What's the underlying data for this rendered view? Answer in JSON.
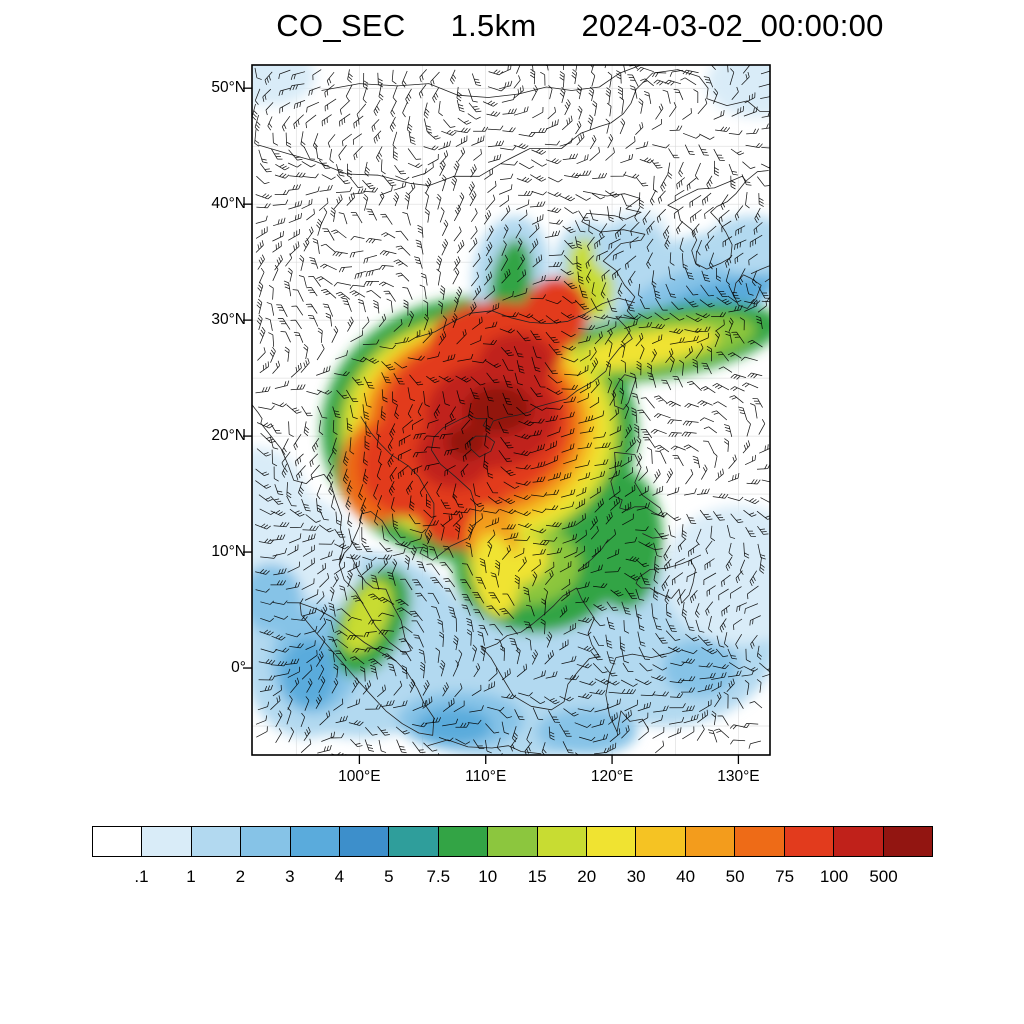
{
  "title": {
    "variable": "CO_SEC",
    "level": "1.5km",
    "datetime": "2024-03-02_00:00:00"
  },
  "chart_data": {
    "type": "heatmap",
    "title": "CO_SEC 1.5km 2024-03-02_00:00:00",
    "projection": "lat-lon map of East and Southeast Asia",
    "extent": {
      "lon_min": 91.5,
      "lon_max": 132.5,
      "lat_min": -7.5,
      "lat_max": 52.0
    },
    "x_ticks": [
      {
        "lon": 100,
        "label": "100°E"
      },
      {
        "lon": 110,
        "label": "110°E"
      },
      {
        "lon": 120,
        "label": "120°E"
      },
      {
        "lon": 130,
        "label": "130°E"
      }
    ],
    "y_ticks": [
      {
        "lat": 50,
        "label": "50°N"
      },
      {
        "lat": 40,
        "label": "40°N"
      },
      {
        "lat": 30,
        "label": "30°N"
      },
      {
        "lat": 20,
        "label": "20°N"
      },
      {
        "lat": 10,
        "label": "10°N"
      },
      {
        "lat": 0,
        "label": "0°"
      }
    ],
    "colorbar": {
      "orientation": "horizontal",
      "tick_labels": [
        ".1",
        "1",
        "2",
        "3",
        "4",
        "5",
        "7.5",
        "10",
        "15",
        "20",
        "30",
        "40",
        "50",
        "75",
        "100",
        "500"
      ],
      "colors": [
        "#ffffff",
        "#d9ecf8",
        "#b2d9f0",
        "#86c3e7",
        "#5aabdc",
        "#3d8fcb",
        "#2f9e9b",
        "#33a445",
        "#8cc63e",
        "#c8dc32",
        "#f0e331",
        "#f5c323",
        "#f39c1c",
        "#ee6b17",
        "#e23b1d",
        "#c0211a",
        "#921511"
      ],
      "grid_color": "#000000"
    },
    "overlay": "wind barbs",
    "description": "CO concentration field: maximum (>100) centered over southern China and northern Indochina (~100-120E, 10-32N); band of moderate values extending northeast over the East China Sea toward 132E and south over the South China Sea and Philippines; low values (<2) over surrounding oceans; near-zero (white) over the Tibetan Plateau, Mongolia and northeast Asia."
  }
}
